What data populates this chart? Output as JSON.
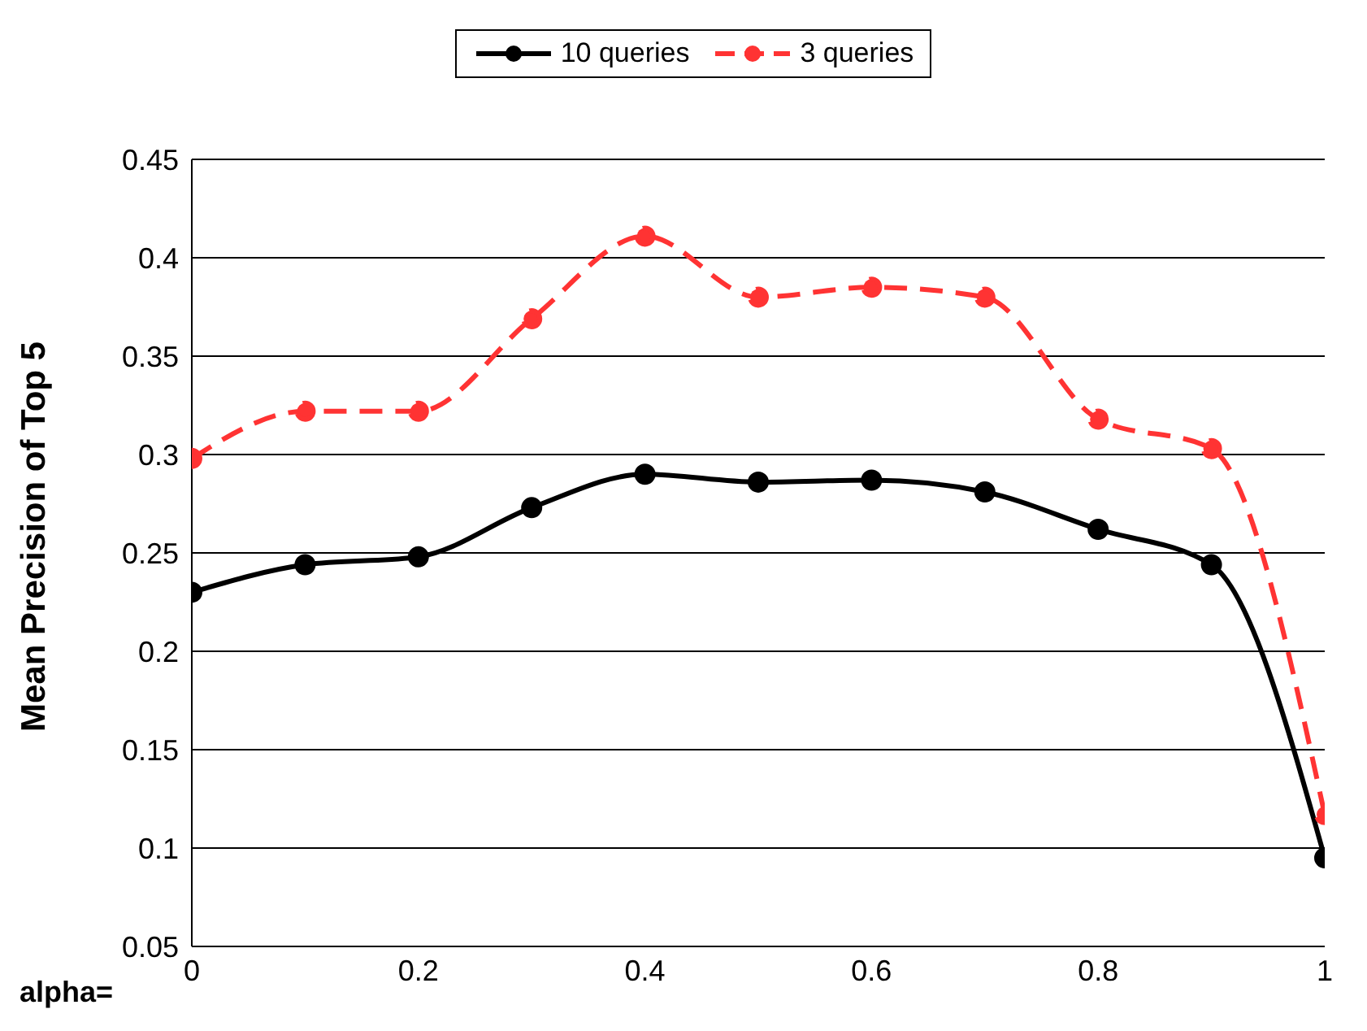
{
  "chart_data": {
    "type": "line",
    "xlabel": "alpha=",
    "ylabel": "Mean Precision of Top 5",
    "x": [
      0,
      0.1,
      0.2,
      0.3,
      0.4,
      0.5,
      0.6,
      0.7,
      0.8,
      0.9,
      1
    ],
    "series": [
      {
        "name": "10 queries",
        "color": "#000000",
        "line_style": "solid",
        "values": [
          0.23,
          0.244,
          0.248,
          0.273,
          0.29,
          0.286,
          0.287,
          0.281,
          0.262,
          0.244,
          0.095
        ]
      },
      {
        "name": "3 queries",
        "color": "#ff3333",
        "line_style": "dashed",
        "values": [
          0.298,
          0.322,
          0.322,
          0.369,
          0.411,
          0.38,
          0.385,
          0.38,
          0.318,
          0.303,
          0.117
        ]
      }
    ],
    "xlim": [
      0,
      1
    ],
    "xticks": [
      0,
      0.2,
      0.4,
      0.6,
      0.8,
      1
    ],
    "ylim": [
      0.05,
      0.45
    ],
    "yticks": [
      0.05,
      0.1,
      0.15,
      0.2,
      0.25,
      0.3,
      0.35,
      0.4,
      0.45
    ],
    "grid": "y",
    "legend": "top",
    "marker": "circle"
  }
}
